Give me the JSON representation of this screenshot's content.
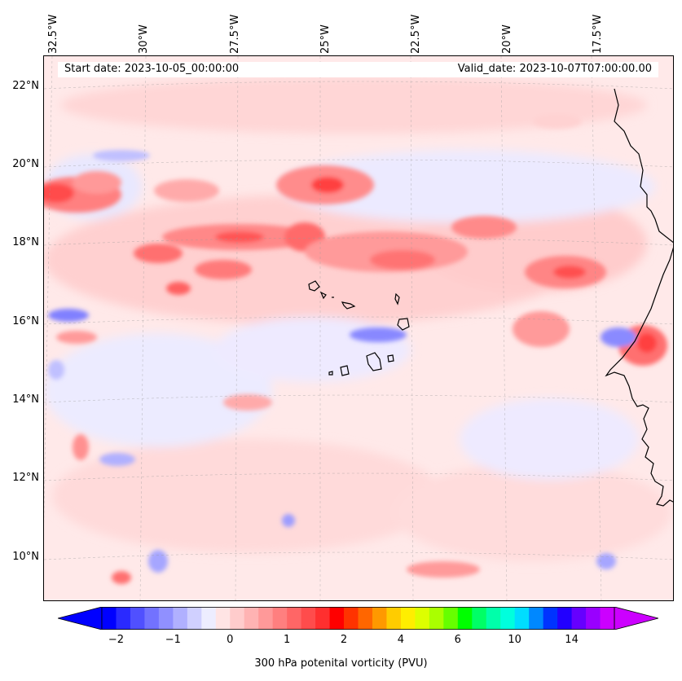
{
  "header": {
    "start_date": "Start date: 2023-10-05_00:00:00",
    "valid_date": "Valid_date: 2023-10-07T07:00:00.00"
  },
  "map": {
    "lon_labels": [
      "32.5°W",
      "30°W",
      "27.5°W",
      "25°W",
      "22.5°W",
      "20°W",
      "17.5°W"
    ],
    "lat_labels": [
      "22°N",
      "20°N",
      "18°N",
      "16°N",
      "14°N",
      "12°N",
      "10°N"
    ]
  },
  "colorbar": {
    "label": "300 hPa potenital vorticity (PVU)",
    "ticks": [
      "−2",
      "−1",
      "0",
      "1",
      "2",
      "4",
      "6",
      "10",
      "14"
    ],
    "colors": [
      "#0000ff",
      "#2a2aff",
      "#5050ff",
      "#7272ff",
      "#9090ff",
      "#b0b0ff",
      "#d0d0ff",
      "#ededff",
      "#ffe4e4",
      "#ffcccc",
      "#ffb3b3",
      "#ff9999",
      "#ff7f7f",
      "#ff6666",
      "#ff4c4c",
      "#ff2f2f",
      "#ff0000",
      "#ff3300",
      "#ff6600",
      "#ff9900",
      "#ffcc00",
      "#ffee00",
      "#ddff00",
      "#aaff00",
      "#66ff00",
      "#00ff00",
      "#00ff66",
      "#00ffaa",
      "#00ffdd",
      "#00ddff",
      "#0088ff",
      "#0033ff",
      "#2200ff",
      "#6600ff",
      "#9900ff",
      "#cc00ff"
    ],
    "extend_min_color": "#0000ff",
    "extend_max_color": "#cc00ff"
  }
}
